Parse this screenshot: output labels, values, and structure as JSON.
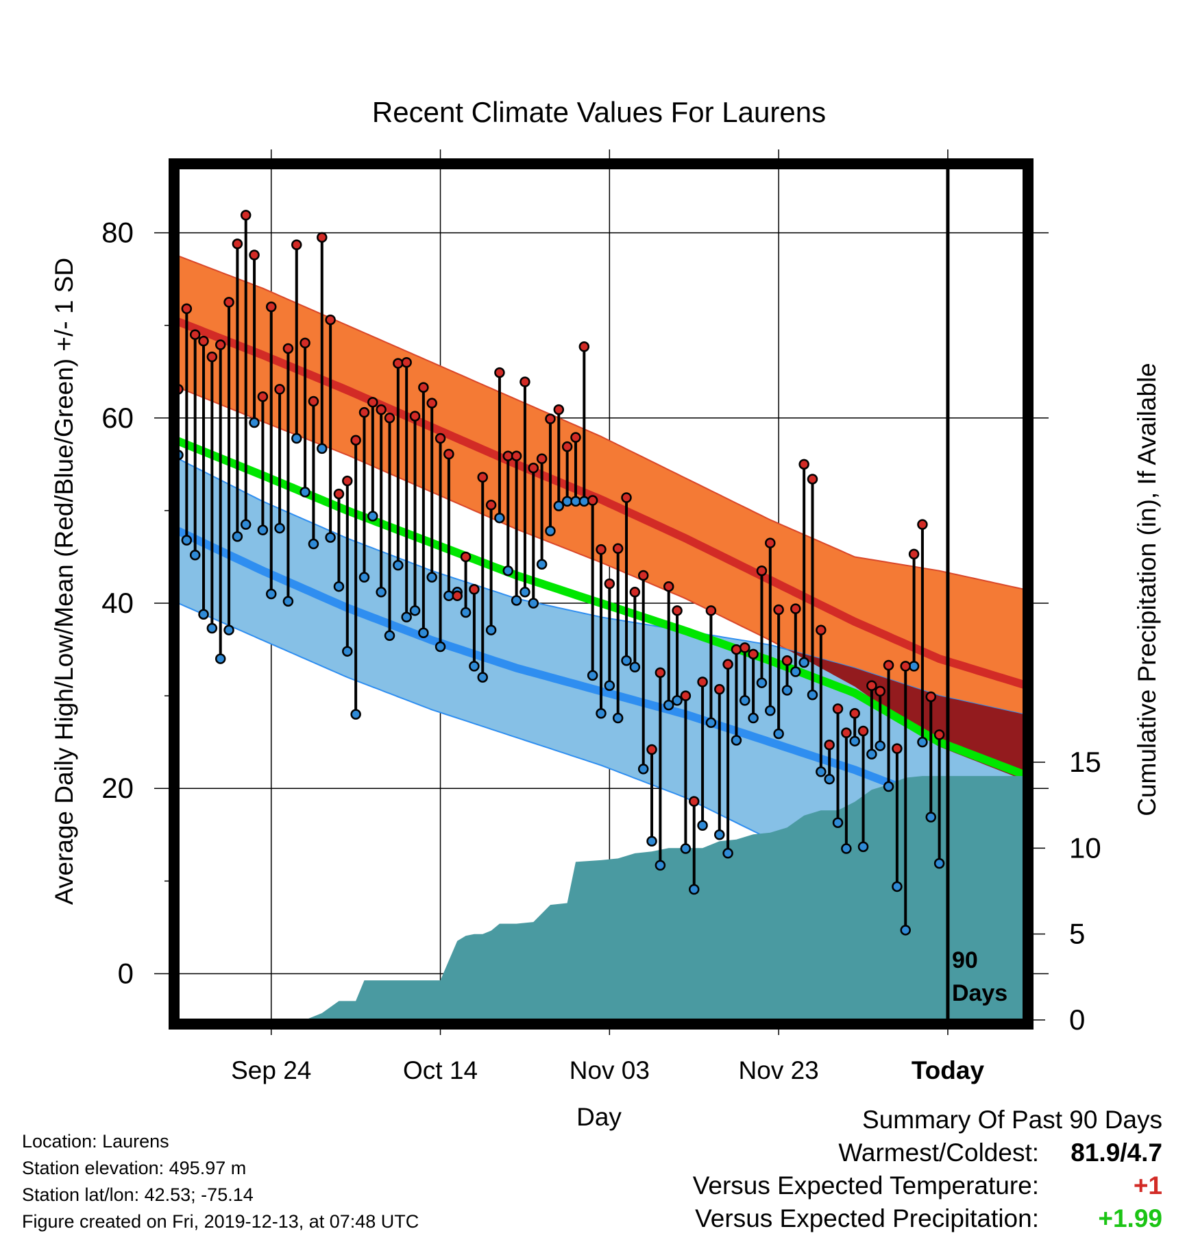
{
  "chart_data": {
    "type": "line",
    "title": "Recent Climate Values For Laurens",
    "xlabel": "Day",
    "ylabel_left": "Average Daily High/Low/Mean (Red/Blue/Green) +/- 1 SD",
    "ylabel_right": "Cumulative Precipitation (in), If Available",
    "x_tick_labels": [
      "Sep 24",
      "Oct 14",
      "Nov 03",
      "Nov 23",
      "Today"
    ],
    "x_tick_days": [
      "2019-09-24",
      "2019-10-14",
      "2019-11-03",
      "2019-11-23",
      "2019-12-13"
    ],
    "x_range": [
      "2019-09-13",
      "2019-12-22"
    ],
    "ylim": [
      -5,
      87
    ],
    "y_ticks": [
      0,
      20,
      40,
      60,
      80
    ],
    "y2_ticks": [
      0,
      5,
      10,
      15
    ],
    "y2_lim": [
      0,
      15
    ],
    "grid": true,
    "today_marker_text": [
      "90",
      "Days"
    ],
    "expected": {
      "days": [
        "2019-09-13",
        "2019-09-23",
        "2019-10-03",
        "2019-10-13",
        "2019-10-23",
        "2019-11-02",
        "2019-11-12",
        "2019-11-22",
        "2019-12-02",
        "2019-12-12",
        "2019-12-22"
      ],
      "high_mean": [
        70.4,
        66.8,
        63.0,
        59.0,
        55.0,
        51.2,
        47.0,
        42.5,
        38.0,
        34.0,
        31.2
      ],
      "high_sd_upper": [
        77.5,
        74.0,
        70.0,
        66.0,
        62.0,
        58.0,
        53.5,
        49.0,
        45.0,
        43.5,
        41.5
      ],
      "low_mean": [
        47.8,
        43.5,
        39.5,
        36.0,
        33.0,
        30.5,
        28.0,
        25.0,
        22.0,
        18.5,
        16.5
      ],
      "low_sd_lower": [
        40.0,
        36.0,
        32.0,
        28.5,
        25.5,
        22.5,
        19.0,
        14.5,
        11.0,
        7.0,
        5.0
      ],
      "mean": [
        57.5,
        53.8,
        50.0,
        46.5,
        43.0,
        40.0,
        37.0,
        33.8,
        30.3,
        25.0,
        21.5
      ]
    },
    "series": [
      {
        "name": "High",
        "color": "#d22b26",
        "values": [
          63.1,
          71.8,
          69.0,
          68.3,
          66.6,
          67.9,
          72.5,
          78.8,
          81.9,
          77.6,
          62.3,
          72.0,
          63.1,
          67.5,
          78.7,
          68.1,
          61.8,
          79.5,
          70.6,
          51.8,
          53.2,
          57.6,
          60.6,
          61.7,
          60.9,
          60.0,
          65.9,
          66.0,
          60.2,
          63.3,
          61.6,
          57.8,
          56.1,
          40.8,
          45.0,
          41.5,
          53.6,
          50.6,
          64.9,
          55.9,
          55.9,
          63.9,
          54.6,
          55.6,
          59.9,
          60.9,
          56.9,
          57.9,
          67.7,
          51.1,
          45.8,
          42.1,
          45.9,
          51.4,
          41.2,
          43.0,
          24.2,
          32.5,
          41.8,
          39.2,
          30.0,
          18.6,
          31.5,
          39.2,
          30.7,
          33.4,
          35.0,
          35.2,
          34.5,
          43.5,
          46.5,
          39.3,
          33.8,
          39.4,
          55.0,
          53.4,
          37.1,
          24.7,
          28.6,
          26.0,
          28.1,
          26.2,
          31.1,
          30.5,
          33.3,
          24.3,
          33.2,
          45.3,
          48.5,
          29.9,
          25.8
        ],
        "x": [
          "2019-09-13",
          "2019-09-14",
          "2019-09-15",
          "2019-09-16",
          "2019-09-17",
          "2019-09-18",
          "2019-09-19",
          "2019-09-20",
          "2019-09-21",
          "2019-09-22",
          "2019-09-23",
          "2019-09-24",
          "2019-09-25",
          "2019-09-26",
          "2019-09-27",
          "2019-09-28",
          "2019-09-29",
          "2019-09-30",
          "2019-10-01",
          "2019-10-02",
          "2019-10-03",
          "2019-10-04",
          "2019-10-05",
          "2019-10-06",
          "2019-10-07",
          "2019-10-08",
          "2019-10-09",
          "2019-10-10",
          "2019-10-11",
          "2019-10-12",
          "2019-10-13",
          "2019-10-14",
          "2019-10-15",
          "2019-10-16",
          "2019-10-17",
          "2019-10-18",
          "2019-10-19",
          "2019-10-20",
          "2019-10-21",
          "2019-10-22",
          "2019-10-23",
          "2019-10-24",
          "2019-10-25",
          "2019-10-26",
          "2019-10-27",
          "2019-10-28",
          "2019-10-29",
          "2019-10-30",
          "2019-10-31",
          "2019-11-01",
          "2019-11-02",
          "2019-11-03",
          "2019-11-04",
          "2019-11-05",
          "2019-11-06",
          "2019-11-07",
          "2019-11-08",
          "2019-11-09",
          "2019-11-10",
          "2019-11-11",
          "2019-11-12",
          "2019-11-13",
          "2019-11-14",
          "2019-11-15",
          "2019-11-16",
          "2019-11-17",
          "2019-11-18",
          "2019-11-19",
          "2019-11-20",
          "2019-11-21",
          "2019-11-22",
          "2019-11-23",
          "2019-11-24",
          "2019-11-25",
          "2019-11-26",
          "2019-11-27",
          "2019-11-28",
          "2019-11-29",
          "2019-11-30",
          "2019-12-01",
          "2019-12-02",
          "2019-12-03",
          "2019-12-04",
          "2019-12-05",
          "2019-12-06",
          "2019-12-07",
          "2019-12-08",
          "2019-12-09",
          "2019-12-10",
          "2019-12-11",
          "2019-12-12"
        ]
      },
      {
        "name": "Low",
        "color": "#2f8ad6",
        "values": [
          56.0,
          46.8,
          45.2,
          38.8,
          37.3,
          34.0,
          37.1,
          47.2,
          48.5,
          59.5,
          47.9,
          41.0,
          48.1,
          40.2,
          57.8,
          52.0,
          46.4,
          56.7,
          47.1,
          41.8,
          34.8,
          28.0,
          42.8,
          49.4,
          41.2,
          36.5,
          44.1,
          38.5,
          39.2,
          36.8,
          42.8,
          35.3,
          40.8,
          41.2,
          39.0,
          33.2,
          32.0,
          37.1,
          49.2,
          43.5,
          40.3,
          41.2,
          40.0,
          44.2,
          47.8,
          50.5,
          51.0,
          51.0,
          51.0,
          32.2,
          28.1,
          31.1,
          27.6,
          33.8,
          33.1,
          22.1,
          14.3,
          11.7,
          29.0,
          29.5,
          13.5,
          9.1,
          16.0,
          27.1,
          15.0,
          13.0,
          25.2,
          29.5,
          27.6,
          31.4,
          28.4,
          25.9,
          30.6,
          32.6,
          33.6,
          30.1,
          21.8,
          21.0,
          16.3,
          13.5,
          25.1,
          13.7,
          23.7,
          24.6,
          20.2,
          9.4,
          4.7,
          33.2,
          25.0,
          16.9,
          11.9
        ],
        "x": [
          "2019-09-13",
          "2019-09-14",
          "2019-09-15",
          "2019-09-16",
          "2019-09-17",
          "2019-09-18",
          "2019-09-19",
          "2019-09-20",
          "2019-09-21",
          "2019-09-22",
          "2019-09-23",
          "2019-09-24",
          "2019-09-25",
          "2019-09-26",
          "2019-09-27",
          "2019-09-28",
          "2019-09-29",
          "2019-09-30",
          "2019-10-01",
          "2019-10-02",
          "2019-10-03",
          "2019-10-04",
          "2019-10-05",
          "2019-10-06",
          "2019-10-07",
          "2019-10-08",
          "2019-10-09",
          "2019-10-10",
          "2019-10-11",
          "2019-10-12",
          "2019-10-13",
          "2019-10-14",
          "2019-10-15",
          "2019-10-16",
          "2019-10-17",
          "2019-10-18",
          "2019-10-19",
          "2019-10-20",
          "2019-10-21",
          "2019-10-22",
          "2019-10-23",
          "2019-10-24",
          "2019-10-25",
          "2019-10-26",
          "2019-10-27",
          "2019-10-28",
          "2019-10-29",
          "2019-10-30",
          "2019-10-31",
          "2019-11-01",
          "2019-11-02",
          "2019-11-03",
          "2019-11-04",
          "2019-11-05",
          "2019-11-06",
          "2019-11-07",
          "2019-11-08",
          "2019-11-09",
          "2019-11-10",
          "2019-11-11",
          "2019-11-12",
          "2019-11-13",
          "2019-11-14",
          "2019-11-15",
          "2019-11-16",
          "2019-11-17",
          "2019-11-18",
          "2019-11-19",
          "2019-11-20",
          "2019-11-21",
          "2019-11-22",
          "2019-11-23",
          "2019-11-24",
          "2019-11-25",
          "2019-11-26",
          "2019-11-27",
          "2019-11-28",
          "2019-11-29",
          "2019-11-30",
          "2019-12-01",
          "2019-12-02",
          "2019-12-03",
          "2019-12-04",
          "2019-12-05",
          "2019-12-06",
          "2019-12-07",
          "2019-12-08",
          "2019-12-09",
          "2019-12-10",
          "2019-12-11",
          "2019-12-12"
        ]
      },
      {
        "name": "Cumulative Precipitation",
        "color": "#4a9aa1",
        "x": [
          "2019-09-13",
          "2019-09-28",
          "2019-09-30",
          "2019-10-02",
          "2019-10-04",
          "2019-10-05",
          "2019-10-14",
          "2019-10-16",
          "2019-10-17",
          "2019-10-18",
          "2019-10-19",
          "2019-10-20",
          "2019-10-21",
          "2019-10-23",
          "2019-10-25",
          "2019-10-27",
          "2019-10-29",
          "2019-10-30",
          "2019-11-02",
          "2019-11-04",
          "2019-11-06",
          "2019-11-08",
          "2019-11-10",
          "2019-11-12",
          "2019-11-14",
          "2019-11-16",
          "2019-11-18",
          "2019-11-20",
          "2019-11-22",
          "2019-11-24",
          "2019-11-26",
          "2019-11-28",
          "2019-11-30",
          "2019-12-02",
          "2019-12-04",
          "2019-12-06",
          "2019-12-08",
          "2019-12-10",
          "2019-12-12",
          "2019-12-22"
        ],
        "values": [
          0,
          0,
          0.4,
          1.1,
          1.1,
          2.3,
          2.3,
          4.6,
          4.9,
          5.0,
          5.0,
          5.2,
          5.6,
          5.6,
          5.7,
          6.7,
          6.8,
          9.2,
          9.3,
          9.4,
          9.7,
          9.8,
          10.0,
          10.0,
          10.0,
          10.4,
          10.5,
          10.8,
          10.9,
          11.2,
          11.9,
          12.2,
          12.2,
          12.7,
          13.4,
          13.7,
          14.1,
          14.2,
          14.2,
          14.2
        ]
      }
    ]
  },
  "footer": {
    "location": "Location: Laurens",
    "elevation": "Station elevation: 495.97 m",
    "latlon": "Station lat/lon: 42.53; -75.14",
    "created": "Figure created on Fri, 2019-12-13, at 07:48 UTC"
  },
  "summary": {
    "heading": "Summary Of Past 90 Days",
    "warmest_coldest_label": "Warmest/Coldest:",
    "warmest_coldest_value": "81.9/4.7",
    "temp_label": "Versus Expected Temperature:",
    "temp_value": "+1",
    "temp_color": "#d22b26",
    "precip_label": "Versus Expected Precipitation:",
    "precip_value": "+1.99",
    "precip_color": "#1bc414"
  },
  "colors": {
    "high_band": "#f47a35",
    "high_mean_line": "#d22b26",
    "low_band": "#86c0e6",
    "low_mean_line": "#2f8ef0",
    "mean_line": "#00e600",
    "overlap": "#931b1e",
    "precip": "#4a9aa1"
  }
}
